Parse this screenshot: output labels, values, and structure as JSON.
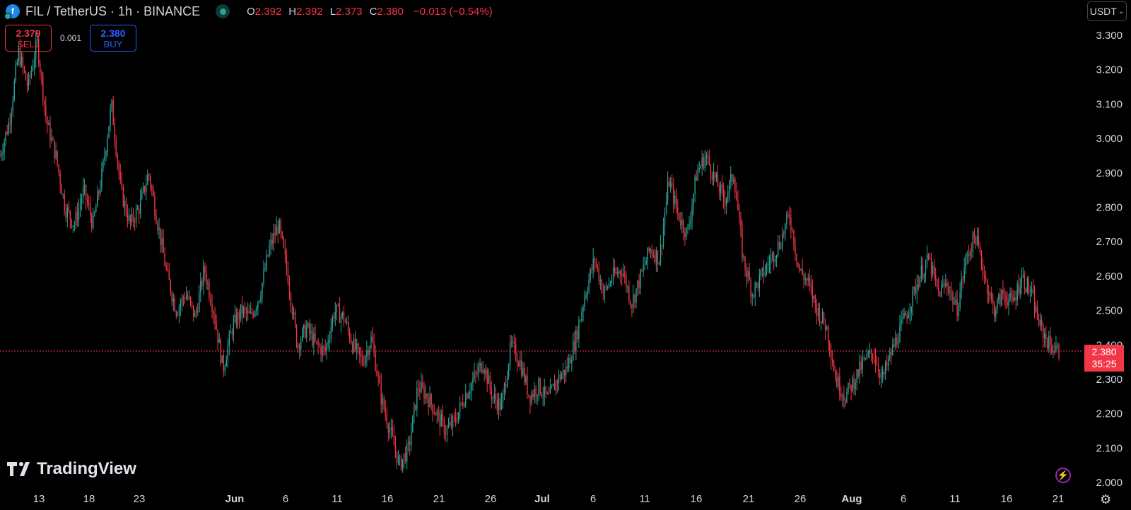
{
  "header": {
    "symbol_icon": "filecoin-icon",
    "title": "FIL / TetherUS · 1h · BINANCE",
    "ohlc": [
      {
        "key": "O",
        "value": "2.392"
      },
      {
        "key": "H",
        "value": "2.392"
      },
      {
        "key": "L",
        "value": "2.373"
      },
      {
        "key": "C",
        "value": "2.380"
      }
    ],
    "change": "−0.013 (−0.54%)"
  },
  "trade": {
    "sell_price": "2.379",
    "sell_label": "SELL",
    "spread": "0.001",
    "buy_price": "2.380",
    "buy_label": "BUY"
  },
  "currency_select": "USDT",
  "last_price": {
    "price": "2.380",
    "countdown": "35:25"
  },
  "logo": "TradingView",
  "colors": {
    "up": "#26a69a",
    "down": "#f23645",
    "background": "#000000",
    "text": "#d1d4dc"
  },
  "chart_data": {
    "type": "candlestick",
    "ylim": [
      1.98,
      3.33
    ],
    "y_ticks": [
      "3.300",
      "3.200",
      "3.100",
      "3.000",
      "2.900",
      "2.800",
      "2.700",
      "2.600",
      "2.500",
      "2.400",
      "2.300",
      "2.200",
      "2.100",
      "2.000"
    ],
    "x_ticks": [
      "13",
      "18",
      "23",
      "Jun",
      "6",
      "11",
      "16",
      "21",
      "26",
      "Jul",
      "6",
      "11",
      "16",
      "21",
      "26",
      "Aug",
      "6",
      "11",
      "16",
      "21"
    ],
    "current_price": 2.38,
    "price_path": [
      [
        0,
        2.95
      ],
      [
        2,
        3.05
      ],
      [
        4,
        3.25
      ],
      [
        6,
        3.15
      ],
      [
        8,
        3.28
      ],
      [
        10,
        3.05
      ],
      [
        12,
        2.95
      ],
      [
        14,
        2.8
      ],
      [
        16,
        2.75
      ],
      [
        18,
        2.85
      ],
      [
        20,
        2.75
      ],
      [
        22,
        2.9
      ],
      [
        24,
        3.1
      ],
      [
        26,
        2.85
      ],
      [
        28,
        2.75
      ],
      [
        30,
        2.8
      ],
      [
        32,
        2.9
      ],
      [
        34,
        2.75
      ],
      [
        36,
        2.6
      ],
      [
        38,
        2.5
      ],
      [
        40,
        2.55
      ],
      [
        42,
        2.48
      ],
      [
        44,
        2.62
      ],
      [
        46,
        2.5
      ],
      [
        48,
        2.33
      ],
      [
        50,
        2.45
      ],
      [
        52,
        2.5
      ],
      [
        54,
        2.48
      ],
      [
        56,
        2.55
      ],
      [
        58,
        2.68
      ],
      [
        60,
        2.75
      ],
      [
        62,
        2.6
      ],
      [
        64,
        2.4
      ],
      [
        66,
        2.45
      ],
      [
        68,
        2.4
      ],
      [
        70,
        2.38
      ],
      [
        72,
        2.5
      ],
      [
        74,
        2.48
      ],
      [
        76,
        2.4
      ],
      [
        78,
        2.35
      ],
      [
        80,
        2.42
      ],
      [
        82,
        2.25
      ],
      [
        84,
        2.15
      ],
      [
        86,
        2.05
      ],
      [
        88,
        2.1
      ],
      [
        90,
        2.28
      ],
      [
        92,
        2.25
      ],
      [
        94,
        2.2
      ],
      [
        96,
        2.15
      ],
      [
        98,
        2.18
      ],
      [
        100,
        2.25
      ],
      [
        102,
        2.3
      ],
      [
        104,
        2.35
      ],
      [
        106,
        2.25
      ],
      [
        108,
        2.22
      ],
      [
        110,
        2.4
      ],
      [
        112,
        2.35
      ],
      [
        114,
        2.25
      ],
      [
        116,
        2.28
      ],
      [
        118,
        2.24
      ],
      [
        120,
        2.3
      ],
      [
        122,
        2.33
      ],
      [
        124,
        2.42
      ],
      [
        126,
        2.55
      ],
      [
        128,
        2.65
      ],
      [
        130,
        2.55
      ],
      [
        132,
        2.6
      ],
      [
        134,
        2.62
      ],
      [
        136,
        2.52
      ],
      [
        138,
        2.6
      ],
      [
        140,
        2.68
      ],
      [
        142,
        2.65
      ],
      [
        144,
        2.88
      ],
      [
        146,
        2.78
      ],
      [
        148,
        2.72
      ],
      [
        150,
        2.9
      ],
      [
        152,
        2.95
      ],
      [
        154,
        2.88
      ],
      [
        156,
        2.82
      ],
      [
        158,
        2.9
      ],
      [
        160,
        2.65
      ],
      [
        162,
        2.55
      ],
      [
        164,
        2.6
      ],
      [
        166,
        2.65
      ],
      [
        168,
        2.7
      ],
      [
        170,
        2.78
      ],
      [
        172,
        2.62
      ],
      [
        174,
        2.58
      ],
      [
        176,
        2.5
      ],
      [
        178,
        2.45
      ],
      [
        180,
        2.3
      ],
      [
        182,
        2.25
      ],
      [
        184,
        2.3
      ],
      [
        186,
        2.35
      ],
      [
        188,
        2.38
      ],
      [
        190,
        2.3
      ],
      [
        192,
        2.38
      ],
      [
        194,
        2.45
      ],
      [
        196,
        2.52
      ],
      [
        198,
        2.6
      ],
      [
        200,
        2.65
      ],
      [
        202,
        2.55
      ],
      [
        204,
        2.58
      ],
      [
        206,
        2.5
      ],
      [
        208,
        2.65
      ],
      [
        210,
        2.72
      ],
      [
        212,
        2.6
      ],
      [
        214,
        2.5
      ],
      [
        216,
        2.55
      ],
      [
        218,
        2.52
      ],
      [
        220,
        2.6
      ],
      [
        222,
        2.55
      ],
      [
        224,
        2.45
      ],
      [
        226,
        2.4
      ],
      [
        228,
        2.38
      ]
    ]
  }
}
